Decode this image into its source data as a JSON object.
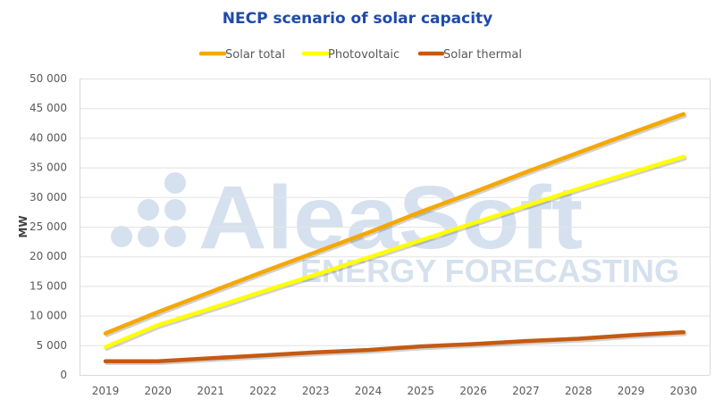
{
  "chart_data": {
    "type": "line",
    "title": "NECP scenario of solar capacity",
    "xlabel": "",
    "ylabel": "MW",
    "ylim": [
      0,
      50000
    ],
    "y_ticks": [
      0,
      5000,
      10000,
      15000,
      20000,
      25000,
      30000,
      35000,
      40000,
      45000,
      50000
    ],
    "y_tick_labels": [
      "0",
      "5 000",
      "10 000",
      "15 000",
      "20 000",
      "25 000",
      "30 000",
      "35 000",
      "40 000",
      "45 000",
      "50 000"
    ],
    "grid": true,
    "legend_position": "top-center",
    "categories": [
      "2019",
      "2020",
      "2021",
      "2022",
      "2023",
      "2024",
      "2025",
      "2026",
      "2027",
      "2028",
      "2029",
      "2030"
    ],
    "series": [
      {
        "name": "Solar total",
        "color": "#f5a800",
        "values": [
          7000,
          10600,
          14000,
          17400,
          20700,
          24000,
          27500,
          30800,
          34200,
          37500,
          40800,
          44000
        ]
      },
      {
        "name": "Photovoltaic",
        "color": "#ffff00",
        "values": [
          4700,
          8400,
          11200,
          14100,
          16900,
          19800,
          22700,
          25600,
          28500,
          31400,
          34100,
          36800
        ]
      },
      {
        "name": "Solar thermal",
        "color": "#c55a11",
        "values": [
          2300,
          2300,
          2800,
          3300,
          3800,
          4200,
          4800,
          5200,
          5700,
          6100,
          6700,
          7200
        ]
      }
    ]
  },
  "watermark": {
    "brand": "AleaSoft",
    "tagline": "ENERGY FORECASTING"
  }
}
